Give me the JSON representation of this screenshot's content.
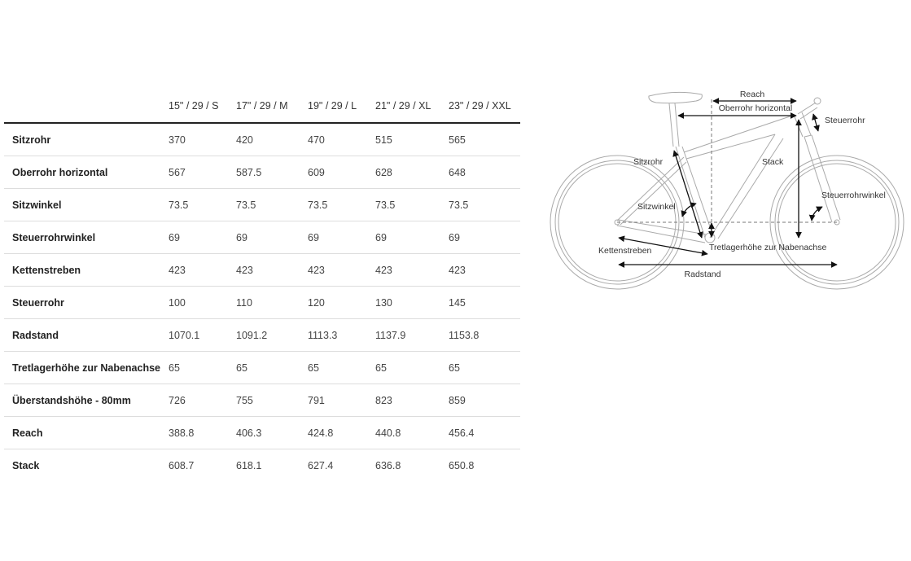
{
  "table": {
    "columns": [
      "15\" / 29 / S",
      "17\" / 29 / M",
      "19\" / 29 / L",
      "21\" / 29 / XL",
      "23\" / 29 / XXL"
    ],
    "rows": [
      {
        "label": "Sitzrohr",
        "values": [
          "370",
          "420",
          "470",
          "515",
          "565"
        ]
      },
      {
        "label": "Oberrohr horizontal",
        "values": [
          "567",
          "587.5",
          "609",
          "628",
          "648"
        ]
      },
      {
        "label": "Sitzwinkel",
        "values": [
          "73.5",
          "73.5",
          "73.5",
          "73.5",
          "73.5"
        ]
      },
      {
        "label": "Steuerrohrwinkel",
        "values": [
          "69",
          "69",
          "69",
          "69",
          "69"
        ]
      },
      {
        "label": "Kettenstreben",
        "values": [
          "423",
          "423",
          "423",
          "423",
          "423"
        ]
      },
      {
        "label": "Steuerrohr",
        "values": [
          "100",
          "110",
          "120",
          "130",
          "145"
        ]
      },
      {
        "label": "Radstand",
        "values": [
          "1070.1",
          "1091.2",
          "1113.3",
          "1137.9",
          "1153.8"
        ]
      },
      {
        "label": "Tretlagerhöhe zur Nabenachse",
        "values": [
          "65",
          "65",
          "65",
          "65",
          "65"
        ]
      },
      {
        "label": "Überstandshöhe - 80mm",
        "values": [
          "726",
          "755",
          "791",
          "823",
          "859"
        ]
      },
      {
        "label": "Reach",
        "values": [
          "388.8",
          "406.3",
          "424.8",
          "440.8",
          "456.4"
        ]
      },
      {
        "label": "Stack",
        "values": [
          "608.7",
          "618.1",
          "627.4",
          "636.8",
          "650.8"
        ]
      }
    ]
  },
  "diagram": {
    "labels": {
      "reach": "Reach",
      "top_tube": "Oberrohr horizontal",
      "head_tube": "Steuerrohr",
      "stack": "Stack",
      "seat_tube": "Sitzrohr",
      "seat_angle": "Sitzwinkel",
      "head_angle": "Steuerrohrwinkel",
      "bb_drop": "Tretlagerhöhe zur Nabenachse",
      "chainstays": "Kettenstreben",
      "wheelbase": "Radstand"
    }
  }
}
